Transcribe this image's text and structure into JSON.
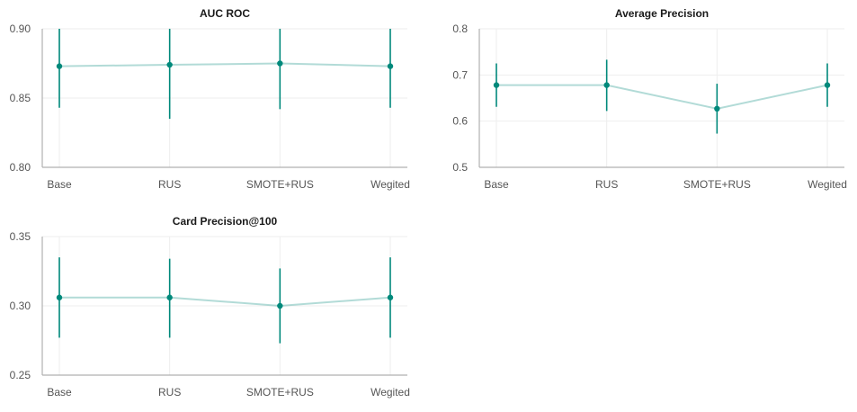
{
  "colors": {
    "accent": "#00897b",
    "axis": "#b0b0b0",
    "grid": "#eeeeee",
    "text": "#555555"
  },
  "chart_data": [
    {
      "type": "line",
      "title": "AUC ROC",
      "categories": [
        "Base",
        "RUS",
        "SMOTE+RUS",
        "Wegited"
      ],
      "values": [
        0.873,
        0.874,
        0.875,
        0.873
      ],
      "err_low": [
        0.843,
        0.835,
        0.842,
        0.843
      ],
      "err_high": [
        0.903,
        0.913,
        0.908,
        0.903
      ],
      "ylim": [
        0.8,
        0.9
      ],
      "yticks": [
        0.8,
        0.85,
        0.9
      ],
      "ytick_labels": [
        "0.80",
        "0.85",
        "0.90"
      ],
      "error_bars": true,
      "grid": true
    },
    {
      "type": "line",
      "title": "Average Precision",
      "categories": [
        "Base",
        "RUS",
        "SMOTE+RUS",
        "Wegited"
      ],
      "values": [
        0.678,
        0.678,
        0.627,
        0.678
      ],
      "err_low": [
        0.631,
        0.622,
        0.573,
        0.631
      ],
      "err_high": [
        0.725,
        0.733,
        0.681,
        0.725
      ],
      "ylim": [
        0.5,
        0.8
      ],
      "yticks": [
        0.5,
        0.6,
        0.7,
        0.8
      ],
      "ytick_labels": [
        "0.5",
        "0.6",
        "0.7",
        "0.8"
      ],
      "error_bars": true,
      "grid": true
    },
    {
      "type": "line",
      "title": "Card Precision@100",
      "categories": [
        "Base",
        "RUS",
        "SMOTE+RUS",
        "Wegited"
      ],
      "values": [
        0.306,
        0.306,
        0.3,
        0.306
      ],
      "err_low": [
        0.277,
        0.277,
        0.273,
        0.277
      ],
      "err_high": [
        0.335,
        0.334,
        0.327,
        0.335
      ],
      "ylim": [
        0.25,
        0.35
      ],
      "yticks": [
        0.25,
        0.3,
        0.35
      ],
      "ytick_labels": [
        "0.25",
        "0.30",
        "0.35"
      ],
      "error_bars": true,
      "grid": true
    }
  ]
}
